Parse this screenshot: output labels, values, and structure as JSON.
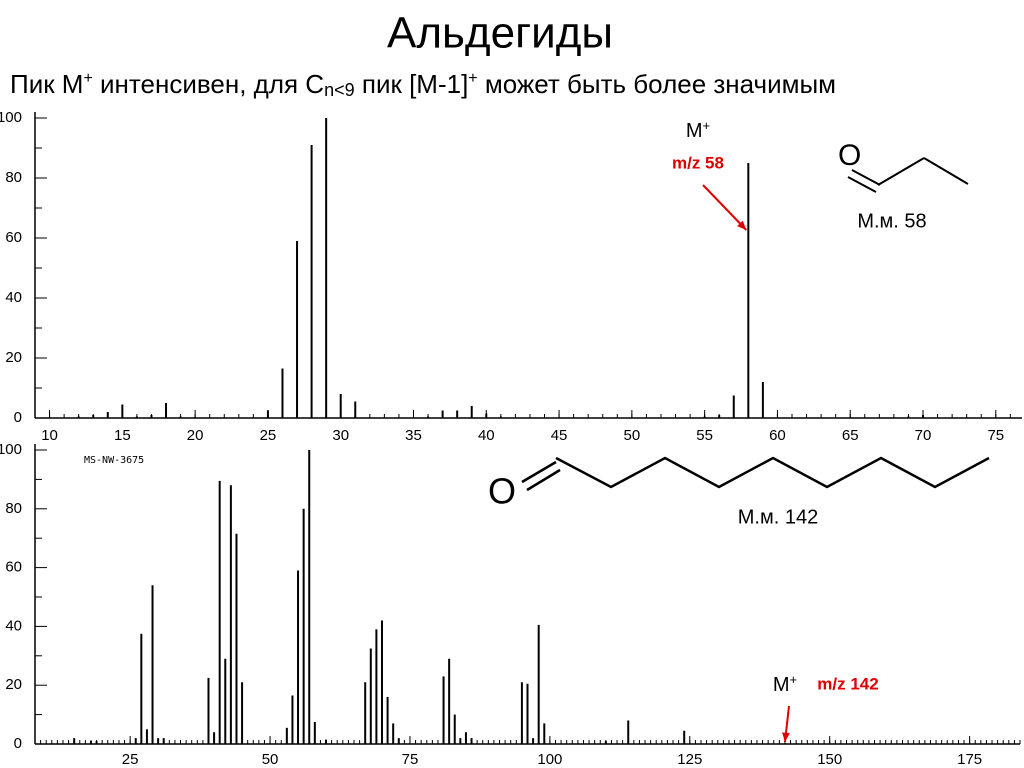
{
  "slide": {
    "title": "Альдегиды",
    "subtitle": [
      "Пик M",
      "+",
      " интенсивен, для C",
      "n<9",
      "  пик [M-1]",
      "+",
      "  может быть более значимым"
    ]
  },
  "chart_data": [
    {
      "type": "bar",
      "xlim": [
        9,
        76.8
      ],
      "ylim": [
        0,
        100
      ],
      "xticks": [
        10,
        15,
        20,
        25,
        30,
        35,
        40,
        45,
        50,
        55,
        60,
        65,
        70,
        75
      ],
      "yticks": [
        0,
        20,
        40,
        60,
        80,
        100
      ],
      "color": "#000000",
      "x": [
        12,
        13,
        14,
        15,
        16,
        17,
        18,
        19,
        20,
        25,
        26,
        27,
        28,
        29,
        30,
        31,
        36,
        37,
        38,
        39,
        40,
        41,
        55,
        56,
        57,
        58,
        59,
        69,
        70
      ],
      "values": [
        0.5,
        1,
        2,
        4.5,
        0.5,
        1,
        5,
        0.5,
        0.3,
        2.5,
        16.5,
        59,
        91,
        100,
        8,
        5.5,
        0.5,
        2.5,
        2.5,
        4,
        1.5,
        0.5,
        0.5,
        1,
        7.5,
        85,
        12,
        0.5,
        1
      ],
      "ion_label": "M",
      "charge": "+",
      "mz": 58,
      "mz_label": "m/z 58",
      "mass_label": "М.м. 58"
    },
    {
      "type": "bar",
      "xlim": [
        8,
        184
      ],
      "ylim": [
        0,
        100
      ],
      "xticks": [
        25,
        50,
        75,
        100,
        125,
        150,
        175
      ],
      "yticks": [
        0,
        20,
        40,
        60,
        80,
        100
      ],
      "color": "#000000",
      "spectrum_id": "MS-NW-3675",
      "x": [
        15,
        18,
        19,
        26,
        27,
        28,
        29,
        30,
        31,
        39,
        40,
        41,
        42,
        43,
        44,
        45,
        53,
        54,
        55,
        56,
        57,
        58,
        60,
        67,
        68,
        69,
        70,
        71,
        72,
        73,
        81,
        82,
        83,
        84,
        85,
        86,
        95,
        96,
        97,
        98,
        99,
        110,
        114,
        124
      ],
      "values": [
        2,
        1,
        1,
        2,
        37.5,
        5,
        54,
        2,
        2,
        22.5,
        4,
        89.5,
        29,
        88,
        71.5,
        21,
        5.5,
        16.5,
        59,
        80,
        100,
        7.5,
        1.5,
        21,
        32.5,
        39,
        42,
        16,
        7,
        2,
        23,
        29,
        10,
        2,
        4,
        2,
        21,
        20.5,
        2,
        40.5,
        7,
        1,
        8,
        4.5
      ],
      "ion_label": "M",
      "charge": "+",
      "mz": 142,
      "mz_label": "m/z 142",
      "mass_label": "М.м. 142"
    }
  ]
}
